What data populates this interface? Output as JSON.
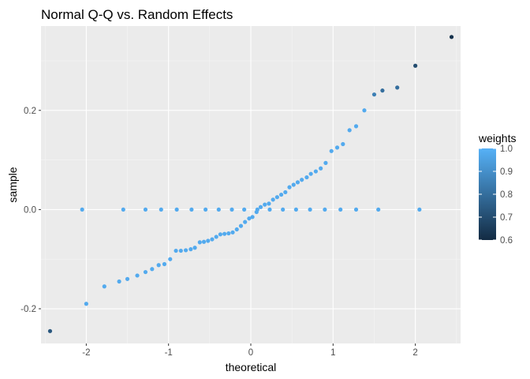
{
  "chart_data": {
    "type": "scatter",
    "title": "Normal Q-Q vs. Random Effects",
    "xlabel": "theoretical",
    "ylabel": "sample",
    "xlim": [
      -2.55,
      2.55
    ],
    "ylim": [
      -0.27,
      0.37
    ],
    "x_ticks": [
      -2,
      -1,
      0,
      1,
      2
    ],
    "x_tick_labels": [
      "-2",
      "-1",
      "0",
      "1",
      "2"
    ],
    "y_ticks": [
      -0.2,
      0.0,
      0.2
    ],
    "y_tick_labels": [
      "-0.2",
      "0.0",
      "0.2"
    ],
    "grid": true,
    "legend": {
      "title": "weights",
      "position": "right",
      "range": [
        0.6,
        1.0
      ],
      "ticks": [
        0.6,
        0.7,
        0.8,
        0.9,
        1.0
      ],
      "tick_labels": [
        "0.6",
        "0.7",
        "0.8",
        "0.9",
        "1.0"
      ],
      "low_color": "#132b43",
      "high_color": "#56b1f7"
    },
    "series": [
      {
        "points": [
          [
            -2.44,
            -0.245,
            0.73
          ],
          [
            -2.0,
            -0.19,
            0.98
          ],
          [
            -1.78,
            -0.155,
            0.98
          ],
          [
            -1.6,
            -0.145,
            0.98
          ],
          [
            -1.5,
            -0.14,
            0.98
          ],
          [
            -1.38,
            -0.133,
            0.98
          ],
          [
            -1.28,
            -0.126,
            0.98
          ],
          [
            -1.2,
            -0.12,
            0.98
          ],
          [
            -1.12,
            -0.112,
            0.98
          ],
          [
            -1.05,
            -0.11,
            0.98
          ],
          [
            -0.98,
            -0.1,
            0.98
          ],
          [
            -0.91,
            -0.083,
            0.98
          ],
          [
            -0.85,
            -0.083,
            0.98
          ],
          [
            -0.79,
            -0.082,
            0.98
          ],
          [
            -0.73,
            -0.08,
            0.98
          ],
          [
            -0.68,
            -0.077,
            0.98
          ],
          [
            -0.62,
            -0.066,
            0.98
          ],
          [
            -0.57,
            -0.065,
            0.98
          ],
          [
            -0.52,
            -0.063,
            0.98
          ],
          [
            -0.47,
            -0.06,
            0.98
          ],
          [
            -0.42,
            -0.055,
            0.98
          ],
          [
            -0.37,
            -0.05,
            0.98
          ],
          [
            -0.32,
            -0.049,
            0.98
          ],
          [
            -0.27,
            -0.048,
            0.98
          ],
          [
            -0.22,
            -0.046,
            0.98
          ],
          [
            -0.17,
            -0.04,
            0.98
          ],
          [
            -0.12,
            -0.033,
            0.98
          ],
          [
            -0.07,
            -0.025,
            0.98
          ],
          [
            -0.02,
            -0.018,
            0.98
          ],
          [
            0.02,
            -0.015,
            0.98
          ],
          [
            0.07,
            -0.005,
            0.98
          ],
          [
            0.12,
            0.005,
            0.98
          ],
          [
            0.17,
            0.01,
            0.98
          ],
          [
            0.22,
            0.012,
            0.98
          ],
          [
            0.27,
            0.02,
            0.98
          ],
          [
            0.32,
            0.025,
            0.98
          ],
          [
            0.37,
            0.03,
            0.98
          ],
          [
            0.42,
            0.035,
            0.98
          ],
          [
            0.47,
            0.045,
            0.98
          ],
          [
            0.52,
            0.05,
            0.98
          ],
          [
            0.57,
            0.055,
            0.98
          ],
          [
            0.62,
            0.06,
            0.98
          ],
          [
            0.68,
            0.065,
            0.98
          ],
          [
            0.73,
            0.072,
            0.98
          ],
          [
            0.79,
            0.077,
            0.98
          ],
          [
            0.85,
            0.083,
            0.98
          ],
          [
            0.91,
            0.094,
            0.98
          ],
          [
            0.98,
            0.118,
            0.98
          ],
          [
            1.05,
            0.125,
            0.98
          ],
          [
            1.12,
            0.132,
            0.98
          ],
          [
            1.2,
            0.16,
            0.98
          ],
          [
            1.28,
            0.168,
            0.98
          ],
          [
            1.38,
            0.2,
            0.98
          ],
          [
            1.5,
            0.232,
            0.85
          ],
          [
            1.6,
            0.24,
            0.8
          ],
          [
            1.78,
            0.246,
            0.8
          ],
          [
            2.0,
            0.29,
            0.7
          ],
          [
            2.44,
            0.348,
            0.62
          ],
          [
            -2.05,
            0,
            0.98
          ],
          [
            -1.55,
            0,
            0.98
          ],
          [
            -1.28,
            0,
            0.98
          ],
          [
            -1.09,
            0,
            0.98
          ],
          [
            -0.9,
            0,
            0.98
          ],
          [
            -0.72,
            0,
            0.98
          ],
          [
            -0.55,
            0,
            0.98
          ],
          [
            -0.39,
            0,
            0.98
          ],
          [
            -0.23,
            0,
            0.98
          ],
          [
            -0.08,
            0,
            0.98
          ],
          [
            0.08,
            0,
            0.98
          ],
          [
            0.23,
            0,
            0.98
          ],
          [
            0.39,
            0,
            0.98
          ],
          [
            0.55,
            0,
            0.98
          ],
          [
            0.72,
            0,
            0.98
          ],
          [
            0.9,
            0,
            0.98
          ],
          [
            1.09,
            0,
            0.98
          ],
          [
            1.28,
            0,
            0.98
          ],
          [
            1.55,
            0,
            0.98
          ],
          [
            2.05,
            0,
            0.98
          ]
        ]
      }
    ]
  }
}
